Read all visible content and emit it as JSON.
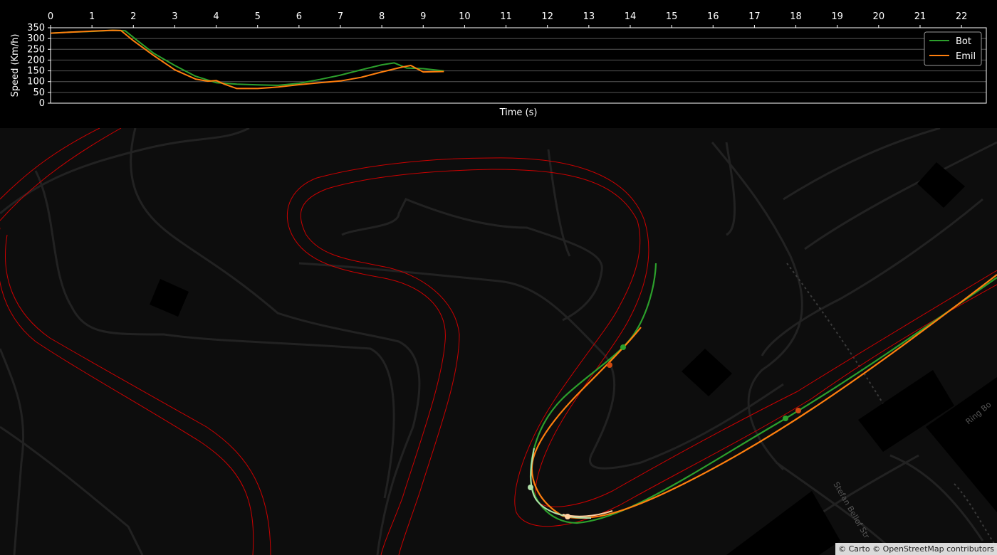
{
  "chart_data": {
    "type": "line",
    "xlabel": "Time (s)",
    "ylabel": "Speed (Km/h)",
    "xlim": [
      0,
      22.6
    ],
    "ylim": [
      0,
      350
    ],
    "xticks": [
      "0",
      "1",
      "2",
      "3",
      "4",
      "5",
      "6",
      "7",
      "8",
      "9",
      "10",
      "11",
      "12",
      "13",
      "14",
      "15",
      "16",
      "17",
      "18",
      "19",
      "20",
      "21",
      "22"
    ],
    "yticks": [
      "0",
      "50",
      "100",
      "150",
      "200",
      "250",
      "300",
      "350"
    ],
    "grid": "horizontal",
    "legend_position": "top-right",
    "series": [
      {
        "name": "Bot",
        "color": "#2ca02c",
        "x": [
          0,
          0.5,
          1,
          1.5,
          1.8,
          2.1,
          2.5,
          3,
          3.5,
          4,
          4.5,
          5,
          5.5,
          6,
          6.5,
          7,
          7.5,
          8,
          8.3,
          8.6,
          9,
          9.5
        ],
        "y": [
          325,
          330,
          333,
          338,
          336,
          290,
          230,
          175,
          125,
          95,
          88,
          85,
          83,
          92,
          110,
          130,
          155,
          178,
          187,
          163,
          160,
          150
        ]
      },
      {
        "name": "Emil",
        "color": "#ff7f0e",
        "x": [
          0,
          0.5,
          1,
          1.5,
          1.7,
          2,
          2.5,
          3,
          3.5,
          3.8,
          4,
          4.2,
          4.5,
          5,
          5.5,
          6,
          6.5,
          7,
          7.5,
          8,
          8.5,
          8.7,
          9,
          9.5
        ],
        "y": [
          325,
          330,
          334,
          338,
          337,
          290,
          220,
          155,
          112,
          102,
          105,
          88,
          68,
          68,
          75,
          86,
          95,
          103,
          120,
          145,
          168,
          175,
          145,
          147
        ]
      }
    ]
  },
  "map": {
    "attribution": "© Carto © OpenStreetMap contributors",
    "labels": [
      "Ring Bo",
      "Stefan Bellof Str"
    ],
    "track_color": "#cc0000",
    "bot_color": "#2ca02c",
    "emil_color": "#ff7f0e"
  }
}
